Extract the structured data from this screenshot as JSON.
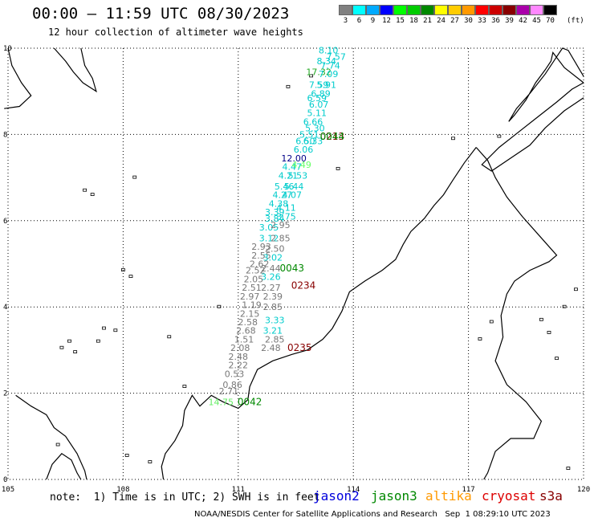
{
  "header": {
    "title": "00:00 – 11:59 UTC 08/30/2023",
    "subtitle": "12 hour collection of altimeter wave heights"
  },
  "legend": {
    "labels": [
      "3",
      "6",
      "9",
      "12",
      "15",
      "18",
      "21",
      "24",
      "27",
      "30",
      "33",
      "36",
      "39",
      "42",
      "45",
      "70"
    ],
    "unit": "(ft)",
    "colors": [
      "#808080",
      "#00ffff",
      "#00aaff",
      "#0000ff",
      "#00ff00",
      "#00cc00",
      "#008800",
      "#ffff00",
      "#ffcc00",
      "#ff9900",
      "#ff0000",
      "#cc0000",
      "#880000",
      "#aa00aa",
      "#ff88ff",
      "#000000"
    ]
  },
  "axes": {
    "x_ticks": [
      "105",
      "108",
      "111",
      "114",
      "117",
      "120"
    ],
    "y_ticks": [
      "0",
      "2",
      "4",
      "6",
      "8",
      "10"
    ]
  },
  "note": "note:  1) Time is in UTC; 2) SWH is in feet",
  "satellites": [
    {
      "name": "jason2",
      "color": "#0000dd"
    },
    {
      "name": "jason3",
      "color": "#008800"
    },
    {
      "name": "altika",
      "color": "#ff9900"
    },
    {
      "name": "cryosat",
      "color": "#dd0000"
    },
    {
      "name": "s3a",
      "color": "#880000"
    }
  ],
  "footer": "NOAA/NESDIS Center for Satellite Applications and Research   Sep  1 08:29:10 UTC 2023",
  "time_labels": [
    {
      "text": "0213",
      "color": "#880000",
      "lon": 113.45,
      "lat": 7.95
    },
    {
      "text": "0044",
      "color": "#008800",
      "lon": 113.45,
      "lat": 7.95
    },
    {
      "text": "0043",
      "color": "#008800",
      "lon": 112.4,
      "lat": 4.9
    },
    {
      "text": "0234",
      "color": "#880000",
      "lon": 112.7,
      "lat": 4.5
    },
    {
      "text": "0235",
      "color": "#880000",
      "lon": 112.6,
      "lat": 3.05
    },
    {
      "text": "0042",
      "color": "#008800",
      "lon": 111.3,
      "lat": 1.8
    }
  ],
  "wave_heights": [
    {
      "text": "8.10",
      "color": "#00cccc",
      "lon": 113.35,
      "lat": 9.95
    },
    {
      "text": "7.57",
      "color": "#00cccc",
      "lon": 113.55,
      "lat": 9.8
    },
    {
      "text": "8.34",
      "color": "#00cccc",
      "lon": 113.3,
      "lat": 9.7
    },
    {
      "text": "7.74",
      "color": "#00cccc",
      "lon": 113.4,
      "lat": 9.6
    },
    {
      "text": "17.32",
      "color": "#22aa22",
      "lon": 113.1,
      "lat": 9.45
    },
    {
      "text": "7.09",
      "color": "#00cccc",
      "lon": 113.35,
      "lat": 9.4
    },
    {
      "text": "7.59",
      "color": "#00cccc",
      "lon": 113.1,
      "lat": 9.15
    },
    {
      "text": "5.91",
      "color": "#00cccc",
      "lon": 113.3,
      "lat": 9.15
    },
    {
      "text": "6.89",
      "color": "#00cccc",
      "lon": 113.15,
      "lat": 8.95
    },
    {
      "text": "6.59",
      "color": "#00cccc",
      "lon": 113.05,
      "lat": 8.85
    },
    {
      "text": "6.07",
      "color": "#00cccc",
      "lon": 113.1,
      "lat": 8.7
    },
    {
      "text": "5.11",
      "color": "#00cccc",
      "lon": 113.05,
      "lat": 8.5
    },
    {
      "text": "6.66",
      "color": "#00cccc",
      "lon": 112.95,
      "lat": 8.3
    },
    {
      "text": "5.30",
      "color": "#00cccc",
      "lon": 113.0,
      "lat": 8.15
    },
    {
      "text": "5.51",
      "color": "#00cccc",
      "lon": 112.85,
      "lat": 8.0
    },
    {
      "text": "6.50",
      "color": "#00cccc",
      "lon": 112.75,
      "lat": 7.85
    },
    {
      "text": "6.33",
      "color": "#00cccc",
      "lon": 112.95,
      "lat": 7.85
    },
    {
      "text": "6.06",
      "color": "#00cccc",
      "lon": 112.7,
      "lat": 7.65
    },
    {
      "text": "12.00",
      "color": "#000088",
      "lon": 112.45,
      "lat": 7.45
    },
    {
      "text": "4.47",
      "color": "#00cccc",
      "lon": 112.4,
      "lat": 7.25
    },
    {
      "text": "4.49",
      "color": "#66ff66",
      "lon": 112.65,
      "lat": 7.3
    },
    {
      "text": "4.21",
      "color": "#00cccc",
      "lon": 112.3,
      "lat": 7.05
    },
    {
      "text": "5.53",
      "color": "#00cccc",
      "lon": 112.55,
      "lat": 7.05
    },
    {
      "text": "5.46",
      "color": "#00cccc",
      "lon": 112.2,
      "lat": 6.8
    },
    {
      "text": "5.44",
      "color": "#00cccc",
      "lon": 112.45,
      "lat": 6.8
    },
    {
      "text": "4.27",
      "color": "#00cccc",
      "lon": 112.15,
      "lat": 6.6
    },
    {
      "text": "4.07",
      "color": "#00cccc",
      "lon": 112.4,
      "lat": 6.6
    },
    {
      "text": "4.38",
      "color": "#00cccc",
      "lon": 112.05,
      "lat": 6.4
    },
    {
      "text": "3.39",
      "color": "#00cccc",
      "lon": 111.95,
      "lat": 6.2
    },
    {
      "text": "4.11",
      "color": "#00cccc",
      "lon": 112.25,
      "lat": 6.3
    },
    {
      "text": "3.84",
      "color": "#00cccc",
      "lon": 111.95,
      "lat": 6.05
    },
    {
      "text": "3.75",
      "color": "#00cccc",
      "lon": 112.25,
      "lat": 6.1
    },
    {
      "text": "3.05",
      "color": "#00cccc",
      "lon": 111.8,
      "lat": 5.85
    },
    {
      "text": "2.95",
      "color": "#777777",
      "lon": 112.1,
      "lat": 5.9
    },
    {
      "text": "3.12",
      "color": "#00cccc",
      "lon": 111.8,
      "lat": 5.6
    },
    {
      "text": "2.85",
      "color": "#777777",
      "lon": 112.1,
      "lat": 5.6
    },
    {
      "text": "2.93",
      "color": "#777777",
      "lon": 111.6,
      "lat": 5.4
    },
    {
      "text": "2.50",
      "color": "#777777",
      "lon": 111.95,
      "lat": 5.35
    },
    {
      "text": "2.55",
      "color": "#777777",
      "lon": 111.6,
      "lat": 5.2
    },
    {
      "text": "3.02",
      "color": "#00cccc",
      "lon": 111.9,
      "lat": 5.15
    },
    {
      "text": "2.62",
      "color": "#777777",
      "lon": 111.55,
      "lat": 5.0
    },
    {
      "text": "2.44",
      "color": "#777777",
      "lon": 111.85,
      "lat": 4.9
    },
    {
      "text": "2.52",
      "color": "#777777",
      "lon": 111.45,
      "lat": 4.85
    },
    {
      "text": "3.26",
      "color": "#00cccc",
      "lon": 111.85,
      "lat": 4.7
    },
    {
      "text": "2.05",
      "color": "#777777",
      "lon": 111.4,
      "lat": 4.65
    },
    {
      "text": "2.51",
      "color": "#777777",
      "lon": 111.35,
      "lat": 4.45
    },
    {
      "text": "2.27",
      "color": "#777777",
      "lon": 111.85,
      "lat": 4.45
    },
    {
      "text": "2.97",
      "color": "#777777",
      "lon": 111.3,
      "lat": 4.25
    },
    {
      "text": "2.39",
      "color": "#777777",
      "lon": 111.9,
      "lat": 4.25
    },
    {
      "text": "1.19",
      "color": "#777777",
      "lon": 111.35,
      "lat": 4.05
    },
    {
      "text": "2.85",
      "color": "#777777",
      "lon": 111.9,
      "lat": 4.0
    },
    {
      "text": "2.15",
      "color": "#777777",
      "lon": 111.3,
      "lat": 3.85
    },
    {
      "text": "2.58",
      "color": "#777777",
      "lon": 111.25,
      "lat": 3.65
    },
    {
      "text": "3.33",
      "color": "#00cccc",
      "lon": 111.95,
      "lat": 3.7
    },
    {
      "text": "2.68",
      "color": "#777777",
      "lon": 111.2,
      "lat": 3.45
    },
    {
      "text": "3.21",
      "color": "#00cccc",
      "lon": 111.9,
      "lat": 3.45
    },
    {
      "text": "1.51",
      "color": "#777777",
      "lon": 111.15,
      "lat": 3.25
    },
    {
      "text": "2.85",
      "color": "#777777",
      "lon": 111.95,
      "lat": 3.25
    },
    {
      "text": "2.08",
      "color": "#777777",
      "lon": 111.05,
      "lat": 3.05
    },
    {
      "text": "2.48",
      "color": "#777777",
      "lon": 111.85,
      "lat": 3.05
    },
    {
      "text": "2.48",
      "color": "#777777",
      "lon": 111.0,
      "lat": 2.85
    },
    {
      "text": "2.22",
      "color": "#777777",
      "lon": 111.0,
      "lat": 2.65
    },
    {
      "text": "0.53",
      "color": "#777777",
      "lon": 110.9,
      "lat": 2.45
    },
    {
      "text": "0.86",
      "color": "#777777",
      "lon": 110.85,
      "lat": 2.2
    },
    {
      "text": "2.71",
      "color": "#777777",
      "lon": 110.75,
      "lat": 2.05
    },
    {
      "text": "14.75",
      "color": "#66ee66",
      "lon": 110.55,
      "lat": 1.8
    }
  ],
  "land": [
    {
      "name": "taiwan",
      "points": [
        [
          120,
          9.2
        ],
        [
          119.5,
          9.55
        ],
        [
          119.2,
          9.9
        ],
        [
          119.15,
          9.7
        ],
        [
          119.0,
          9.5
        ],
        [
          118.75,
          9.2
        ],
        [
          118.5,
          8.8
        ],
        [
          118.2,
          8.45
        ],
        [
          118.05,
          8.3
        ],
        [
          118.25,
          8.6
        ],
        [
          118.6,
          8.95
        ],
        [
          119.0,
          9.4
        ],
        [
          119.3,
          9.8
        ],
        [
          119.45,
          10.0
        ],
        [
          119.6,
          9.95
        ],
        [
          119.9,
          9.5
        ],
        [
          120,
          9.35
        ]
      ]
    },
    {
      "name": "borneo-nw-coast",
      "points": [
        [
          117.2,
          7.7
        ],
        [
          116.9,
          7.35
        ],
        [
          116.6,
          6.95
        ],
        [
          116.35,
          6.6
        ],
        [
          116.1,
          6.35
        ],
        [
          115.85,
          6.05
        ],
        [
          115.5,
          5.75
        ],
        [
          115.3,
          5.45
        ],
        [
          115.1,
          5.1
        ],
        [
          114.75,
          4.85
        ],
        [
          114.3,
          4.6
        ],
        [
          113.9,
          4.35
        ],
        [
          113.7,
          3.9
        ],
        [
          113.45,
          3.5
        ],
        [
          113.2,
          3.25
        ],
        [
          112.8,
          3.0
        ],
        [
          112.4,
          2.9
        ],
        [
          111.9,
          2.75
        ],
        [
          111.5,
          2.55
        ],
        [
          111.3,
          2.15
        ],
        [
          111.25,
          1.85
        ],
        [
          111.0,
          1.65
        ],
        [
          110.6,
          1.8
        ],
        [
          110.3,
          1.95
        ],
        [
          110.0,
          1.7
        ],
        [
          109.8,
          1.95
        ],
        [
          109.6,
          1.6
        ],
        [
          109.55,
          1.25
        ],
        [
          109.35,
          0.9
        ],
        [
          109.1,
          0.6
        ],
        [
          109.0,
          0.3
        ],
        [
          109.05,
          0.0
        ]
      ]
    },
    {
      "name": "borneo-ne-coast",
      "points": [
        [
          117.2,
          7.7
        ],
        [
          117.5,
          7.4
        ],
        [
          117.7,
          7.0
        ],
        [
          118.0,
          6.55
        ],
        [
          118.4,
          6.1
        ],
        [
          118.9,
          5.6
        ],
        [
          119.3,
          5.2
        ],
        [
          119.1,
          5.05
        ],
        [
          118.6,
          4.85
        ],
        [
          118.2,
          4.6
        ],
        [
          118.0,
          4.3
        ],
        [
          117.85,
          3.8
        ],
        [
          117.9,
          3.3
        ],
        [
          117.7,
          2.75
        ],
        [
          118.0,
          2.2
        ],
        [
          118.5,
          1.8
        ],
        [
          118.9,
          1.35
        ],
        [
          118.7,
          0.95
        ],
        [
          118.1,
          0.95
        ],
        [
          117.7,
          0.65
        ],
        [
          117.5,
          0.15
        ],
        [
          117.4,
          0.0
        ]
      ]
    },
    {
      "name": "palawan",
      "points": [
        [
          120,
          8.85
        ],
        [
          119.5,
          8.55
        ],
        [
          119.0,
          8.15
        ],
        [
          118.6,
          7.75
        ],
        [
          118.1,
          7.45
        ],
        [
          117.6,
          7.15
        ],
        [
          117.35,
          7.3
        ],
        [
          117.8,
          7.7
        ],
        [
          118.3,
          8.05
        ],
        [
          118.8,
          8.4
        ],
        [
          119.3,
          8.75
        ],
        [
          119.7,
          9.05
        ],
        [
          120,
          9.2
        ]
      ]
    },
    {
      "name": "malay-peninsula",
      "points": [
        [
          105,
          10.0
        ],
        [
          105.1,
          9.6
        ],
        [
          105.35,
          9.2
        ],
        [
          105.6,
          8.9
        ],
        [
          105.3,
          8.65
        ],
        [
          104.9,
          8.6
        ]
      ]
    },
    {
      "name": "cambodia-coast",
      "points": [
        [
          106.2,
          10.0
        ],
        [
          106.5,
          9.7
        ],
        [
          106.7,
          9.45
        ],
        [
          106.95,
          9.2
        ],
        [
          107.3,
          9.0
        ],
        [
          107.2,
          9.3
        ],
        [
          107.0,
          9.6
        ],
        [
          106.9,
          10.0
        ]
      ]
    },
    {
      "name": "singapore-riau",
      "points": [
        [
          105.2,
          1.95
        ],
        [
          105.6,
          1.7
        ],
        [
          106.0,
          1.5
        ],
        [
          106.2,
          1.2
        ],
        [
          106.5,
          1.0
        ],
        [
          106.8,
          0.6
        ],
        [
          107.0,
          0.2
        ],
        [
          107.05,
          0.0
        ]
      ]
    },
    {
      "name": "bangka",
      "points": [
        [
          106.0,
          0.0
        ],
        [
          106.15,
          0.35
        ],
        [
          106.4,
          0.6
        ],
        [
          106.65,
          0.45
        ],
        [
          106.8,
          0.15
        ],
        [
          106.9,
          0.0
        ]
      ]
    }
  ],
  "islands": [
    {
      "lon": 107.0,
      "lat": 6.7
    },
    {
      "lon": 107.2,
      "lat": 6.6
    },
    {
      "lon": 108.3,
      "lat": 7.0
    },
    {
      "lon": 108.0,
      "lat": 4.85
    },
    {
      "lon": 108.2,
      "lat": 4.7
    },
    {
      "lon": 107.5,
      "lat": 3.5
    },
    {
      "lon": 107.8,
      "lat": 3.45
    },
    {
      "lon": 107.35,
      "lat": 3.2
    },
    {
      "lon": 106.6,
      "lat": 3.2
    },
    {
      "lon": 106.4,
      "lat": 3.05
    },
    {
      "lon": 106.75,
      "lat": 2.95
    },
    {
      "lon": 109.2,
      "lat": 3.3
    },
    {
      "lon": 109.6,
      "lat": 2.15
    },
    {
      "lon": 110.5,
      "lat": 4.0
    },
    {
      "lon": 112.3,
      "lat": 9.1
    },
    {
      "lon": 112.9,
      "lat": 9.35
    },
    {
      "lon": 113.6,
      "lat": 7.2
    },
    {
      "lon": 116.6,
      "lat": 7.9
    },
    {
      "lon": 117.8,
      "lat": 7.95
    },
    {
      "lon": 117.6,
      "lat": 3.65
    },
    {
      "lon": 117.3,
      "lat": 3.25
    },
    {
      "lon": 119.8,
      "lat": 4.4
    },
    {
      "lon": 119.5,
      "lat": 4.0
    },
    {
      "lon": 118.9,
      "lat": 3.7
    },
    {
      "lon": 119.1,
      "lat": 3.4
    },
    {
      "lon": 119.3,
      "lat": 2.8
    },
    {
      "lon": 119.6,
      "lat": 0.25
    },
    {
      "lon": 108.1,
      "lat": 0.55
    },
    {
      "lon": 108.7,
      "lat": 0.4
    },
    {
      "lon": 106.3,
      "lat": 0.8
    }
  ],
  "colors": {
    "land": "#000000",
    "grid": "#000000"
  }
}
